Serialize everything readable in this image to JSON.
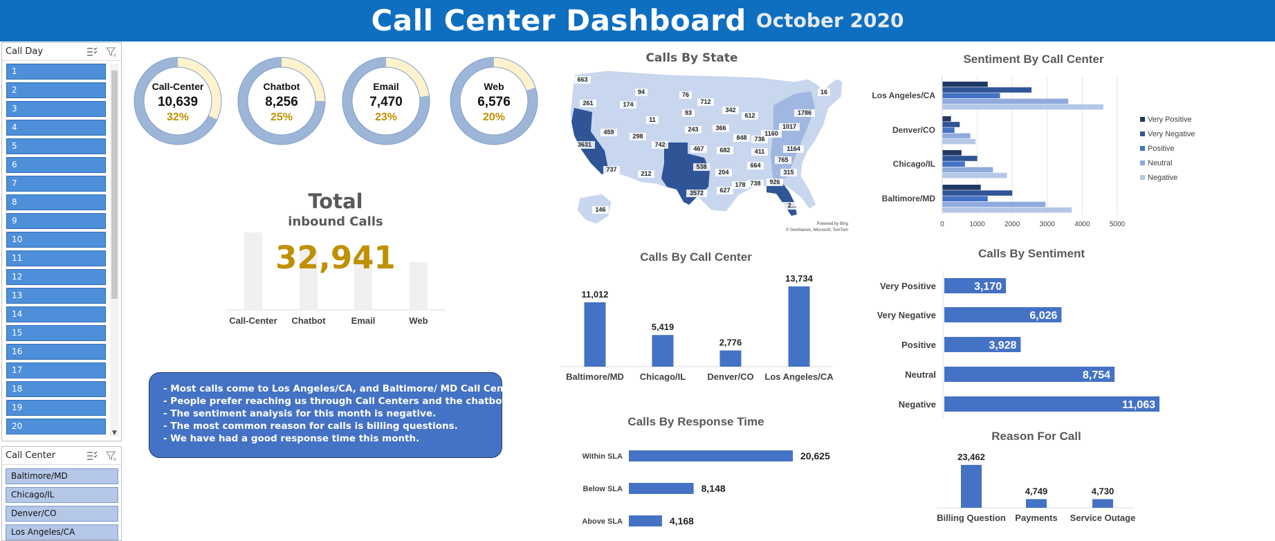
{
  "header": {
    "title": "Call Center Dashboard",
    "subtitle": "October 2020"
  },
  "slicers": {
    "call_day": {
      "title": "Call Day",
      "items": [
        "1",
        "2",
        "3",
        "4",
        "5",
        "6",
        "7",
        "8",
        "9",
        "10",
        "11",
        "12",
        "13",
        "14",
        "15",
        "16",
        "17",
        "18",
        "19",
        "20"
      ]
    },
    "call_center": {
      "title": "Call Center",
      "items": [
        "Baltimore/MD",
        "Chicago/IL",
        "Denver/CO",
        "Los Angeles/CA"
      ]
    }
  },
  "channels": [
    {
      "name": "Call-Center",
      "value": "10,639",
      "pct": "32%",
      "share": 0.32
    },
    {
      "name": "Chatbot",
      "value": "8,256",
      "pct": "25%",
      "share": 0.25
    },
    {
      "name": "Email",
      "value": "7,470",
      "pct": "23%",
      "share": 0.23
    },
    {
      "name": "Web",
      "value": "6,576",
      "pct": "20%",
      "share": 0.2
    }
  ],
  "total": {
    "line1": "Total",
    "line2": "inbound Calls",
    "value": "32,941"
  },
  "notes": [
    "- Most calls come to Los Angeles/CA, and Baltimore/ MD Call Centers.",
    "- People prefer reaching us through Call Centers and the chatbot.",
    "- The sentiment analysis for this month is negative.",
    "- The most common reason for calls is billing questions.",
    "- We have had a good response time this month."
  ],
  "map": {
    "title": "Calls By State",
    "credit1": "Powered by Bing",
    "credit2": "© GeoNames, Microsoft, TomTom",
    "labels": [
      "663",
      "94",
      "76",
      "16",
      "261",
      "174",
      "712",
      "342",
      "1786",
      "11",
      "93",
      "612",
      "3631",
      "459",
      "298",
      "243",
      "366",
      "1160",
      "1017",
      "742",
      "848",
      "736",
      "467",
      "682",
      "411",
      "1164",
      "737",
      "212",
      "538",
      "664",
      "765",
      "204",
      "315",
      "3572",
      "627",
      "178",
      "738",
      "926",
      "146",
      "2..."
    ]
  },
  "colors": {
    "header": "#0e6fc1",
    "bar": "#4472c4",
    "gold": "#bf9000",
    "ring_main": "#9db6d8",
    "ring_rest": "#fff2cc"
  },
  "chart_data": [
    {
      "id": "channel_background_bars",
      "type": "bar",
      "title": "",
      "categories": [
        "Call-Center",
        "Chatbot",
        "Email",
        "Web"
      ],
      "values": [
        10639,
        8256,
        7470,
        6576
      ]
    },
    {
      "id": "calls_by_call_center",
      "type": "bar",
      "title": "Calls By Call Center",
      "categories": [
        "Baltimore/MD",
        "Chicago/IL",
        "Denver/CO",
        "Los Angeles/CA"
      ],
      "values": [
        11012,
        5419,
        2776,
        13734
      ],
      "labels": [
        "11,012",
        "5,419",
        "2,776",
        "13,734"
      ]
    },
    {
      "id": "calls_by_response_time",
      "type": "bar",
      "orientation": "horizontal",
      "title": "Calls By Response Time",
      "categories": [
        "Within SLA",
        "Below SLA",
        "Above SLA"
      ],
      "values": [
        20625,
        8148,
        4168
      ],
      "labels": [
        "20,625",
        "8,148",
        "4,168"
      ]
    },
    {
      "id": "sentiment_by_call_center",
      "type": "bar",
      "orientation": "horizontal",
      "title": "Sentiment By Call Center",
      "categories": [
        "Los Angeles/CA",
        "Denver/CO",
        "Chicago/IL",
        "Baltimore/MD"
      ],
      "series": [
        {
          "name": "Very Positive",
          "color": "#203864",
          "values": [
            1300,
            250,
            550,
            1100
          ]
        },
        {
          "name": "Very Negative",
          "color": "#2f5597",
          "values": [
            2550,
            500,
            1000,
            2000
          ]
        },
        {
          "name": "Positive",
          "color": "#4472c4",
          "values": [
            1650,
            350,
            650,
            1300
          ]
        },
        {
          "name": "Neutral",
          "color": "#8faadc",
          "values": [
            3600,
            800,
            1450,
            2950
          ]
        },
        {
          "name": "Negative",
          "color": "#b4c7e7",
          "values": [
            4600,
            950,
            1850,
            3700
          ]
        }
      ],
      "xlim": [
        0,
        5000
      ],
      "xticks": [
        "0",
        "1000",
        "2000",
        "3000",
        "4000",
        "5000"
      ],
      "legend": "right"
    },
    {
      "id": "calls_by_sentiment",
      "type": "bar",
      "orientation": "horizontal",
      "title": "Calls By Sentiment",
      "categories": [
        "Very Positive",
        "Very Negative",
        "Positive",
        "Neutral",
        "Negative"
      ],
      "values": [
        3170,
        6026,
        3928,
        8754,
        11063
      ],
      "labels": [
        "3,170",
        "6,026",
        "3,928",
        "8,754",
        "11,063"
      ]
    },
    {
      "id": "reason_for_call",
      "type": "bar",
      "title": "Reason For Call",
      "categories": [
        "Billing Question",
        "Payments",
        "Service Outage"
      ],
      "values": [
        23462,
        4749,
        4730
      ],
      "labels": [
        "23,462",
        "4,749",
        "4,730"
      ]
    }
  ]
}
